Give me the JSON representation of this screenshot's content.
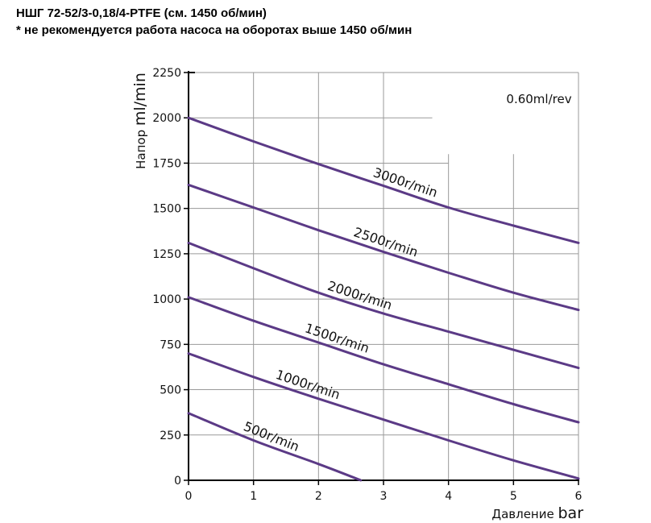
{
  "header": {
    "title": "НШГ 72-52/3-0,18/4-PTFE (см. 1450 об/мин)",
    "note": "* не рекомендуется работа насоса на оборотах выше 1450 об/мин"
  },
  "chart_data": {
    "type": "line",
    "xlabel_word": "Давление",
    "xlabel_unit": "bar",
    "ylabel_word": "Напор",
    "ylabel_unit": "ml/min",
    "annotation": "0.60ml/rev",
    "xlim": [
      0,
      6
    ],
    "ylim": [
      0,
      2250
    ],
    "x_ticks": [
      "0",
      "1",
      "2",
      "3",
      "4",
      "5",
      "6"
    ],
    "y_ticks": [
      "0",
      "250",
      "500",
      "750",
      "1000",
      "1250",
      "1500",
      "1750",
      "2000",
      "2250"
    ],
    "grid": true,
    "line_color": "#5b3a86",
    "series": [
      {
        "name": "3000r/min",
        "x": [
          0,
          1,
          2,
          3,
          4,
          5,
          6
        ],
        "values": [
          2000,
          1870,
          1745,
          1625,
          1505,
          1405,
          1310
        ]
      },
      {
        "name": "2500r/min",
        "x": [
          0,
          1,
          2,
          3,
          4,
          5,
          6
        ],
        "values": [
          1630,
          1505,
          1380,
          1260,
          1145,
          1035,
          940
        ]
      },
      {
        "name": "2000r/min",
        "x": [
          0,
          1,
          2,
          3,
          4,
          5,
          6
        ],
        "values": [
          1310,
          1170,
          1035,
          920,
          820,
          720,
          620
        ]
      },
      {
        "name": "1500r/min",
        "x": [
          0,
          1,
          2,
          3,
          4,
          5,
          6
        ],
        "values": [
          1010,
          880,
          760,
          640,
          530,
          420,
          320
        ]
      },
      {
        "name": "1000r/min",
        "x": [
          0,
          1,
          2,
          3,
          4,
          5,
          6
        ],
        "values": [
          700,
          570,
          450,
          335,
          220,
          110,
          10
        ]
      },
      {
        "name": "500r/min",
        "x": [
          0,
          1,
          2,
          2.65
        ],
        "values": [
          370,
          220,
          90,
          0
        ]
      }
    ]
  }
}
